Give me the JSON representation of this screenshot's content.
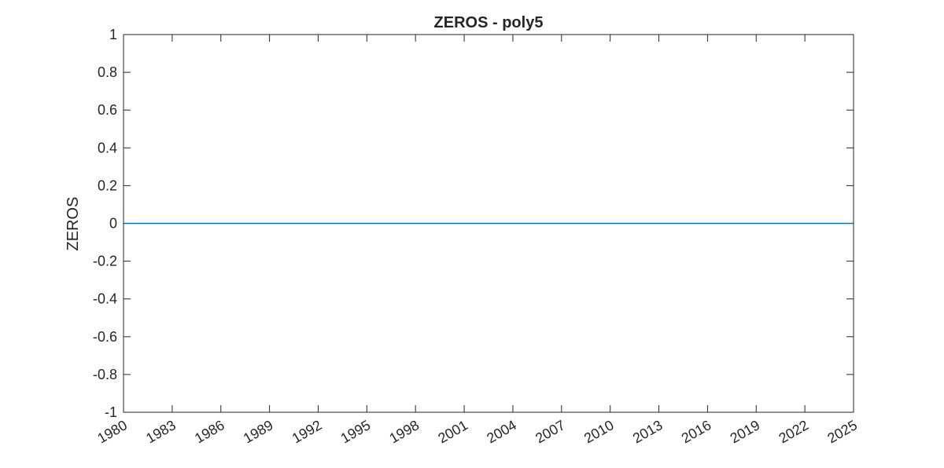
{
  "chart_data": {
    "type": "line",
    "title": "ZEROS - poly5",
    "xlabel": "",
    "ylabel": "ZEROS",
    "xlim": [
      1980,
      2025
    ],
    "ylim": [
      -1,
      1
    ],
    "x_ticks": [
      "1980",
      "1983",
      "1986",
      "1989",
      "1992",
      "1995",
      "1998",
      "2001",
      "2004",
      "2007",
      "2010",
      "2013",
      "2016",
      "2019",
      "2022",
      "2025"
    ],
    "y_ticks": [
      "1",
      "0.8",
      "0.6",
      "0.4",
      "0.2",
      "0",
      "-0.2",
      "-0.4",
      "-0.6",
      "-0.8",
      "-1"
    ],
    "grid": false,
    "series": [
      {
        "color": "#0072bd",
        "x": [
          1980,
          2025
        ],
        "y": [
          0,
          0
        ]
      }
    ]
  }
}
